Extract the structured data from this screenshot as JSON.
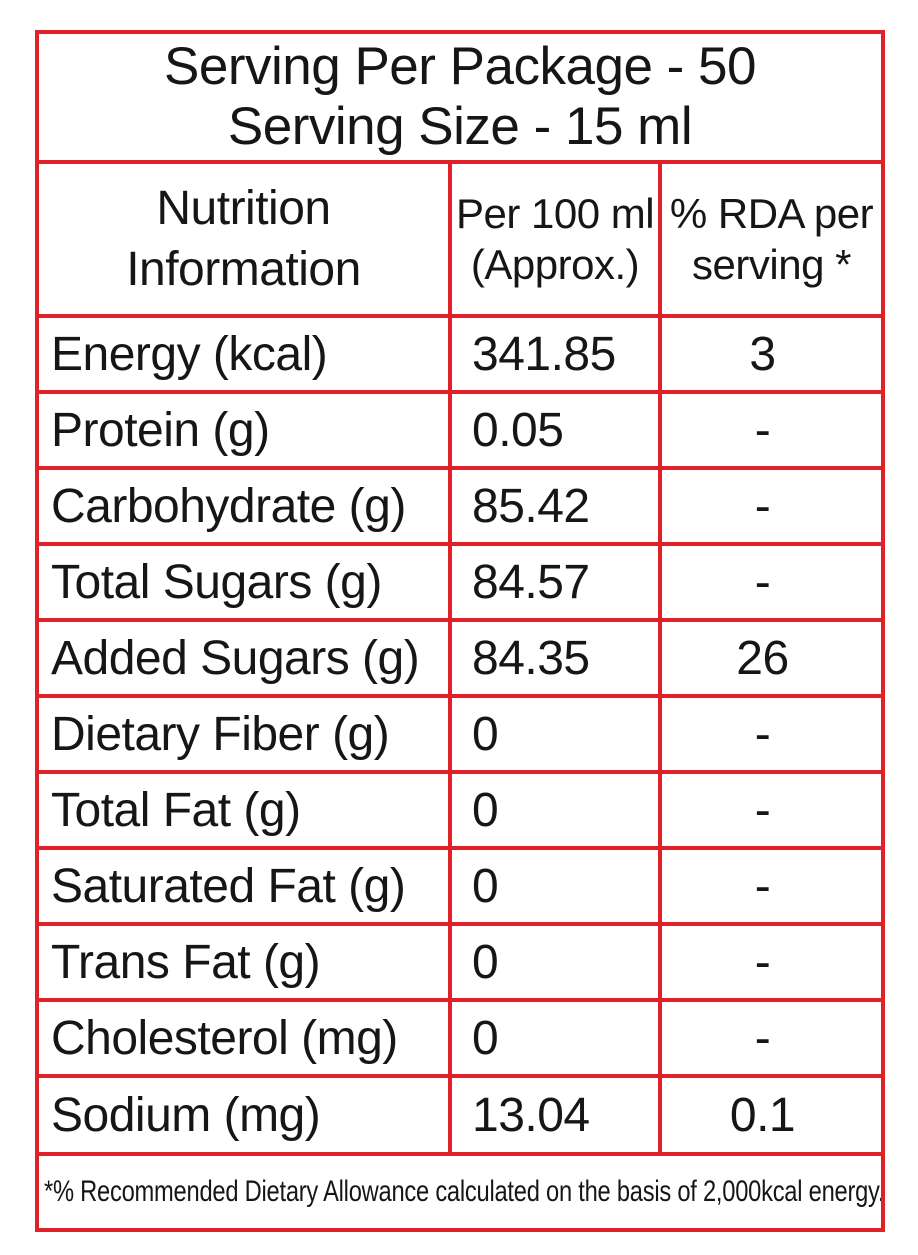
{
  "serving_header": {
    "line1": "Serving Per Package - 50",
    "line2": "Serving Size - 15 ml"
  },
  "columns": {
    "nutrition": {
      "line1": "Nutrition",
      "line2": "Information"
    },
    "per_100ml": {
      "line1": "Per 100 ml",
      "line2": "(Approx.)"
    },
    "rda": {
      "line1": "% RDA per",
      "line2": "serving *"
    }
  },
  "rows": [
    {
      "label": "Energy (kcal)",
      "per_100ml": "341.85",
      "rda_per_serving": "3"
    },
    {
      "label": "Protein (g)",
      "per_100ml": "0.05",
      "rda_per_serving": "-"
    },
    {
      "label": "Carbohydrate (g)",
      "per_100ml": "85.42",
      "rda_per_serving": "-"
    },
    {
      "label": "Total Sugars (g)",
      "per_100ml": "84.57",
      "rda_per_serving": "-"
    },
    {
      "label": "Added Sugars (g)",
      "per_100ml": "84.35",
      "rda_per_serving": "26"
    },
    {
      "label": "Dietary Fiber (g)",
      "per_100ml": "0",
      "rda_per_serving": "-"
    },
    {
      "label": "Total Fat (g)",
      "per_100ml": "0",
      "rda_per_serving": "-"
    },
    {
      "label": "Saturated Fat (g)",
      "per_100ml": "0",
      "rda_per_serving": "-"
    },
    {
      "label": "Trans Fat (g)",
      "per_100ml": "0",
      "rda_per_serving": "-"
    },
    {
      "label": "Cholesterol (mg)",
      "per_100ml": "0",
      "rda_per_serving": "-"
    },
    {
      "label": "Sodium (mg)",
      "per_100ml": "13.04",
      "rda_per_serving": "0.1"
    }
  ],
  "footnote": "*% Recommended Dietary Allowance calculated on the basis of 2,000kcal energy.",
  "colors": {
    "border_red": "#e02228",
    "text_black": "#161616",
    "background": "#ffffff"
  }
}
